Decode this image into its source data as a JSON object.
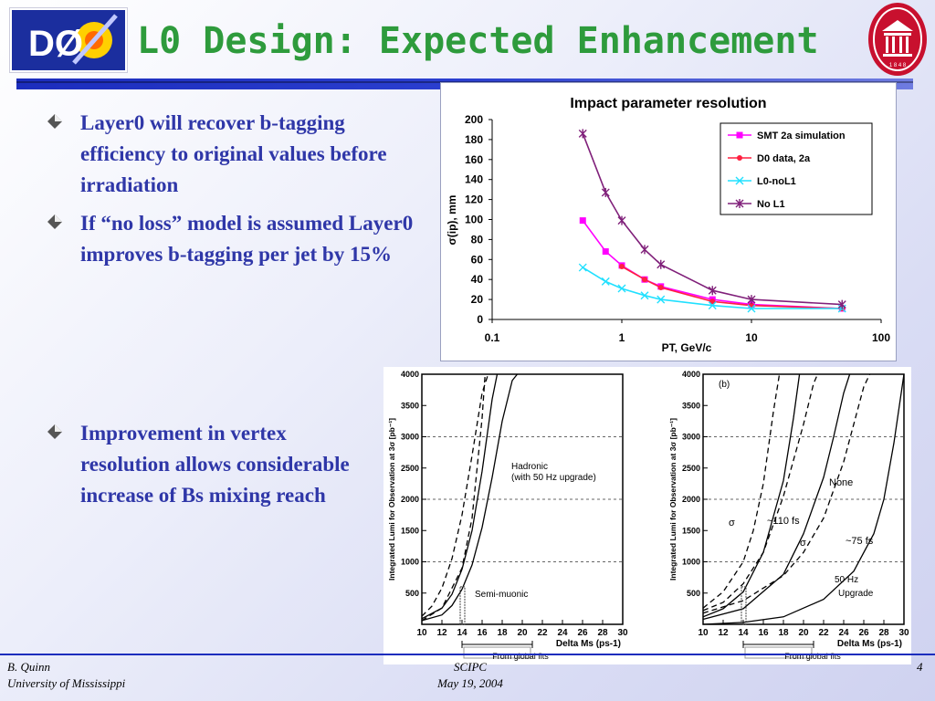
{
  "header": {
    "title": "L0 Design: Expected Enhancement",
    "logo_left_text": "DØ",
    "seal_year": "1 8 4 8"
  },
  "bullets": [
    "Layer0 will recover b-tagging efficiency to original values before irradiation",
    "If “no loss” model is assumed Layer0 improves b-tagging per jet by 15%",
    "Improvement in vertex resolution allows considerable increase of Bs mixing reach"
  ],
  "chart_data": [
    {
      "type": "line",
      "title": "Impact parameter resolution",
      "xlabel": "PT, GeV/c",
      "ylabel": "σ(ip), mm",
      "xscale": "log",
      "xlim": [
        0.1,
        100
      ],
      "ylim": [
        0,
        200
      ],
      "xticks": [
        0.1,
        1,
        10,
        100
      ],
      "xtick_labels": [
        "0.1",
        "1",
        "10",
        "100"
      ],
      "yticks": [
        0,
        20,
        40,
        60,
        80,
        100,
        120,
        140,
        160,
        180,
        200
      ],
      "legend_position": "top-right",
      "grid": false,
      "series": [
        {
          "name": "SMT 2a simulation",
          "color": "#ff00ff",
          "marker": "square",
          "x": [
            0.5,
            0.75,
            1,
            1.5,
            2,
            5,
            10,
            50
          ],
          "y": [
            99,
            68,
            54,
            40,
            33,
            20,
            15,
            11
          ]
        },
        {
          "name": "D0 data, 2a",
          "color": "#ff2040",
          "marker": "dot",
          "x": [
            1,
            1.5,
            2,
            5,
            10,
            50
          ],
          "y": [
            53,
            40,
            32,
            18,
            14,
            11
          ]
        },
        {
          "name": "L0-noL1",
          "color": "#20e0ff",
          "marker": "x",
          "x": [
            0.5,
            0.75,
            1,
            1.5,
            2,
            5,
            10,
            50
          ],
          "y": [
            52,
            38,
            31,
            24,
            20,
            14,
            11,
            11
          ]
        },
        {
          "name": "No L1",
          "color": "#80207a",
          "marker": "star",
          "x": [
            0.5,
            0.75,
            1,
            1.5,
            2,
            5,
            10,
            50
          ],
          "y": [
            186,
            127,
            99,
            70,
            55,
            29,
            20,
            15
          ]
        }
      ]
    },
    {
      "type": "line",
      "title": "",
      "xlabel": "Delta Ms (ps-1)",
      "ylabel": "Integrated Lumi for Observation at 3σ  [pb⁻¹]",
      "xlim": [
        10,
        30
      ],
      "ylim": [
        0,
        4000
      ],
      "xticks": [
        10,
        12,
        14,
        16,
        18,
        20,
        22,
        24,
        26,
        28,
        30
      ],
      "yticks": [
        500,
        1000,
        1500,
        2000,
        2500,
        3000,
        3500,
        4000
      ],
      "annotations": [
        "Hadronic",
        "(with 50 Hz upgrade)",
        "Semi-muonic",
        "From global fits"
      ],
      "series": [
        {
          "style": "solid",
          "x": [
            10,
            12,
            13,
            14,
            15,
            16,
            17,
            18,
            19,
            19.5
          ],
          "y": [
            60,
            150,
            300,
            560,
            950,
            1550,
            2350,
            3250,
            3900,
            4000
          ]
        },
        {
          "style": "solid",
          "x": [
            10,
            12,
            13,
            14,
            15,
            16,
            17,
            17.5
          ],
          "y": [
            90,
            260,
            480,
            880,
            1500,
            2450,
            3600,
            4000
          ]
        },
        {
          "style": "dashed",
          "x": [
            10,
            11,
            12,
            13,
            14,
            15,
            16,
            16.6
          ],
          "y": [
            130,
            290,
            580,
            1050,
            1750,
            2700,
            3700,
            4000
          ]
        },
        {
          "style": "dashed",
          "x": [
            10,
            12,
            14,
            15,
            16,
            16.3
          ],
          "y": [
            60,
            260,
            900,
            1700,
            3300,
            4000
          ]
        }
      ]
    },
    {
      "type": "line",
      "title": "(b)",
      "xlabel": "Delta Ms (ps-1)",
      "ylabel": "Integrated Lumi for Observation at 3σ  [pb⁻¹]",
      "xlim": [
        10,
        30
      ],
      "ylim": [
        0,
        4000
      ],
      "xticks": [
        10,
        12,
        14,
        16,
        18,
        20,
        22,
        24,
        26,
        28,
        30
      ],
      "yticks": [
        500,
        1000,
        1500,
        2000,
        2500,
        3000,
        3500,
        4000
      ],
      "annotations": [
        "None",
        "σ",
        "~110 fs",
        "σ",
        "~75 fs",
        "50 Hz",
        "Upgrade",
        "From global fits"
      ],
      "series": [
        {
          "style": "solid",
          "x": [
            10,
            14,
            18,
            22,
            25,
            27,
            28,
            29,
            30
          ],
          "y": [
            0,
            30,
            120,
            400,
            850,
            1450,
            2000,
            2900,
            4000
          ]
        },
        {
          "style": "dashed",
          "x": [
            10,
            14,
            18,
            20,
            22,
            24,
            25,
            26,
            26.6
          ],
          "y": [
            180,
            380,
            780,
            1150,
            1700,
            2600,
            3200,
            3800,
            4000
          ]
        },
        {
          "style": "solid",
          "x": [
            10,
            14,
            18,
            20,
            22,
            23,
            24,
            24.6
          ],
          "y": [
            80,
            250,
            800,
            1450,
            2350,
            3000,
            3700,
            4000
          ]
        },
        {
          "style": "dashed",
          "x": [
            10,
            12,
            14,
            16,
            18,
            20,
            21,
            21.4
          ],
          "y": [
            220,
            350,
            650,
            1150,
            2050,
            3200,
            3850,
            4000
          ]
        },
        {
          "style": "solid",
          "x": [
            10,
            12,
            14,
            16,
            18,
            19,
            19.6
          ],
          "y": [
            120,
            250,
            520,
            1150,
            2300,
            3300,
            4000
          ]
        },
        {
          "style": "dashed",
          "x": [
            10,
            12,
            14,
            15,
            16,
            17,
            17.6
          ],
          "y": [
            260,
            520,
            1000,
            1500,
            2250,
            3400,
            4000
          ]
        }
      ]
    }
  ],
  "footer": {
    "author": "B. Quinn",
    "institution": "University of Mississippi",
    "meeting": "SCIPC",
    "date": "May 19, 2004",
    "page": "4"
  }
}
